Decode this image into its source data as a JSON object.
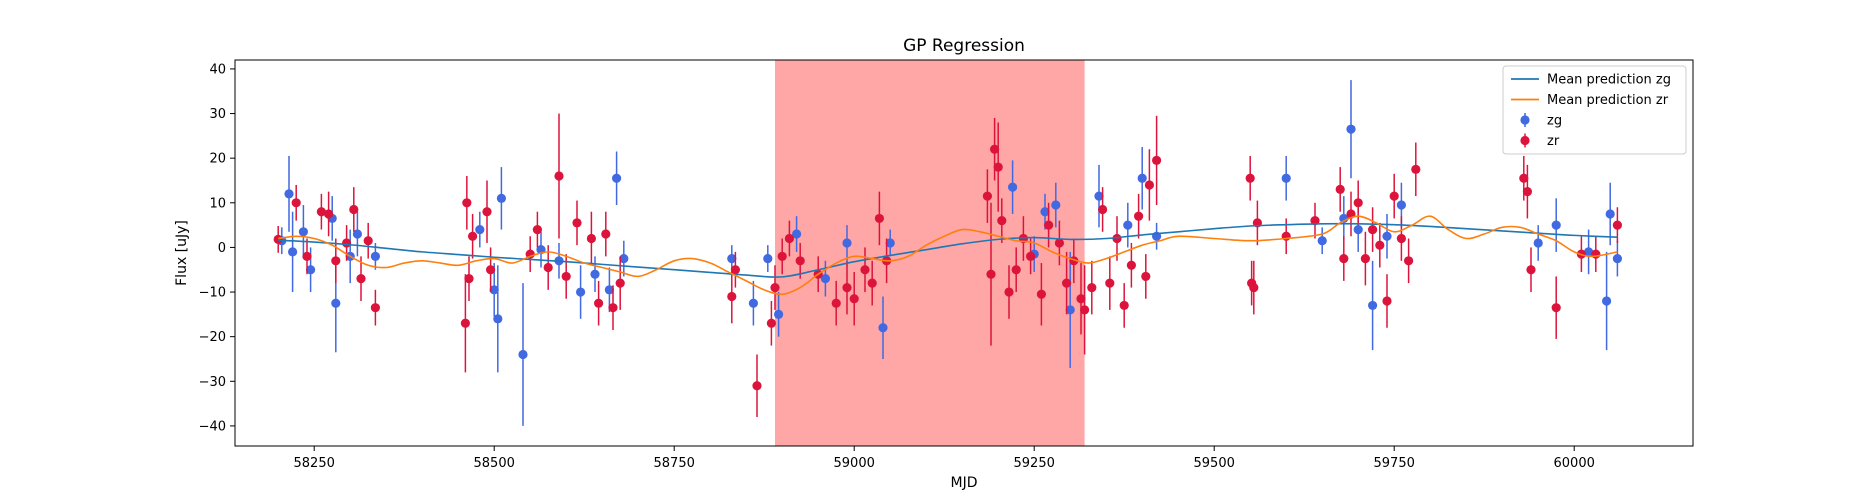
{
  "chart_data": {
    "type": "scatter",
    "title": "GP Regression",
    "xlabel": "MJD",
    "ylabel": "Flux [uJy]",
    "xlim": [
      58140,
      60165
    ],
    "ylim": [
      -44.5,
      42
    ],
    "xticks": [
      58250,
      58500,
      58750,
      59000,
      59250,
      59500,
      59750,
      60000
    ],
    "yticks": [
      -40,
      -30,
      -20,
      -10,
      0,
      10,
      20,
      30,
      40
    ],
    "legend_position": "top-right",
    "highlight_region": {
      "x_start": 58890,
      "x_end": 59320,
      "color": "#ff0000",
      "alpha": 0.35
    },
    "colors": {
      "zg_line": "#1f77b4",
      "zr_line": "#ff7f0e",
      "zg_points": "#4169e1",
      "zr_points": "#dc143c"
    },
    "series": [
      {
        "name": "Mean prediction zg",
        "kind": "line",
        "x": [
          58200,
          58250,
          58300,
          58350,
          58400,
          58450,
          58500,
          58550,
          58600,
          58650,
          58700,
          58750,
          58800,
          58850,
          58900,
          58950,
          59000,
          59050,
          59100,
          59150,
          59200,
          59250,
          59300,
          59350,
          59400,
          59450,
          59500,
          59550,
          59600,
          59650,
          59700,
          59750,
          59800,
          59850,
          59900,
          59950,
          60000,
          60060
        ],
        "y": [
          1.6,
          1.2,
          0.6,
          -0.2,
          -1.0,
          -1.6,
          -2.2,
          -2.7,
          -3.2,
          -3.8,
          -4.4,
          -5.0,
          -5.6,
          -6.2,
          -6.6,
          -5.0,
          -3.2,
          -1.8,
          -0.5,
          0.8,
          1.8,
          2.2,
          1.8,
          2.0,
          2.8,
          3.5,
          4.2,
          4.8,
          5.1,
          5.3,
          5.3,
          5.1,
          4.7,
          4.2,
          3.7,
          3.2,
          2.7,
          2.3
        ]
      },
      {
        "name": "Mean prediction zr",
        "kind": "line",
        "x": [
          58200,
          58225,
          58250,
          58275,
          58300,
          58325,
          58350,
          58375,
          58400,
          58425,
          58450,
          58475,
          58500,
          58525,
          58550,
          58575,
          58600,
          58625,
          58650,
          58675,
          58700,
          58725,
          58750,
          58775,
          58800,
          58825,
          58850,
          58875,
          58900,
          58925,
          58950,
          58975,
          59000,
          59025,
          59050,
          59075,
          59100,
          59125,
          59150,
          59175,
          59200,
          59225,
          59250,
          59275,
          59300,
          59325,
          59350,
          59375,
          59400,
          59425,
          59450,
          59500,
          59550,
          59600,
          59650,
          59675,
          59700,
          59725,
          59750,
          59775,
          59800,
          59825,
          59850,
          59875,
          59900,
          59925,
          59950,
          59975,
          60000,
          60025,
          60060
        ],
        "y": [
          2.0,
          2.5,
          2.0,
          0.5,
          -2.0,
          -4.0,
          -4.5,
          -3.5,
          -3.0,
          -3.5,
          -4.0,
          -3.0,
          -2.5,
          -3.5,
          -2.0,
          -1.0,
          -2.0,
          -3.5,
          -4.5,
          -5.5,
          -6.5,
          -5.0,
          -3.0,
          -2.5,
          -3.5,
          -5.5,
          -7.5,
          -9.5,
          -10.5,
          -9.0,
          -6.0,
          -3.5,
          -2.0,
          -2.5,
          -3.0,
          -2.0,
          0.5,
          2.5,
          4.0,
          3.5,
          2.5,
          1.5,
          1.0,
          -1.0,
          -2.5,
          -3.5,
          -2.5,
          -1.0,
          0.5,
          1.5,
          2.5,
          2.0,
          1.5,
          2.0,
          3.0,
          5.5,
          7.0,
          5.5,
          3.5,
          5.0,
          7.0,
          4.0,
          2.0,
          3.0,
          4.5,
          4.5,
          3.0,
          1.5,
          -1.0,
          -2.0,
          -1.0
        ]
      },
      {
        "name": "zg",
        "kind": "errorbar",
        "points": [
          {
            "x": 58205,
            "y": 1.5,
            "err": 3
          },
          {
            "x": 58215,
            "y": 12,
            "err": 8.5
          },
          {
            "x": 58220,
            "y": -1,
            "err": 9
          },
          {
            "x": 58235,
            "y": 3.5,
            "err": 6
          },
          {
            "x": 58245,
            "y": -5,
            "err": 5
          },
          {
            "x": 58275,
            "y": 6.5,
            "err": 5
          },
          {
            "x": 58280,
            "y": -12.5,
            "err": 11
          },
          {
            "x": 58300,
            "y": -2,
            "err": 6
          },
          {
            "x": 58310,
            "y": 3,
            "err": 5
          },
          {
            "x": 58335,
            "y": -2,
            "err": 3
          },
          {
            "x": 58480,
            "y": 4,
            "err": 4
          },
          {
            "x": 58500,
            "y": -9.5,
            "err": 6
          },
          {
            "x": 58505,
            "y": -16,
            "err": 12
          },
          {
            "x": 58510,
            "y": 11,
            "err": 7
          },
          {
            "x": 58540,
            "y": -24,
            "err": 16
          },
          {
            "x": 58565,
            "y": -0.5,
            "err": 4
          },
          {
            "x": 58590,
            "y": -3,
            "err": 4
          },
          {
            "x": 58620,
            "y": -10,
            "err": 6
          },
          {
            "x": 58640,
            "y": -6,
            "err": 4
          },
          {
            "x": 58660,
            "y": -9.5,
            "err": 5
          },
          {
            "x": 58670,
            "y": 15.5,
            "err": 6
          },
          {
            "x": 58680,
            "y": -2.5,
            "err": 4
          },
          {
            "x": 58830,
            "y": -2.5,
            "err": 3
          },
          {
            "x": 58860,
            "y": -12.5,
            "err": 5
          },
          {
            "x": 58880,
            "y": -2.5,
            "err": 3
          },
          {
            "x": 58895,
            "y": -15,
            "err": 5
          },
          {
            "x": 58920,
            "y": 3,
            "err": 4
          },
          {
            "x": 58960,
            "y": -7,
            "err": 4
          },
          {
            "x": 58990,
            "y": 1,
            "err": 4
          },
          {
            "x": 59040,
            "y": -18,
            "err": 7
          },
          {
            "x": 59050,
            "y": 1,
            "err": 3
          },
          {
            "x": 59220,
            "y": 13.5,
            "err": 6
          },
          {
            "x": 59250,
            "y": -1.5,
            "err": 4
          },
          {
            "x": 59265,
            "y": 8,
            "err": 4
          },
          {
            "x": 59280,
            "y": 9.5,
            "err": 5
          },
          {
            "x": 59300,
            "y": -14,
            "err": 13
          },
          {
            "x": 59340,
            "y": 11.5,
            "err": 7
          },
          {
            "x": 59380,
            "y": 5,
            "err": 5
          },
          {
            "x": 59400,
            "y": 15.5,
            "err": 7
          },
          {
            "x": 59420,
            "y": 2.5,
            "err": 3
          },
          {
            "x": 59600,
            "y": 15.5,
            "err": 5
          },
          {
            "x": 59650,
            "y": 1.5,
            "err": 3
          },
          {
            "x": 59680,
            "y": 6.5,
            "err": 5
          },
          {
            "x": 59690,
            "y": 26.5,
            "err": 11
          },
          {
            "x": 59700,
            "y": 4,
            "err": 5
          },
          {
            "x": 59720,
            "y": -13,
            "err": 10
          },
          {
            "x": 59740,
            "y": 2.5,
            "err": 5
          },
          {
            "x": 59760,
            "y": 9.5,
            "err": 5
          },
          {
            "x": 59950,
            "y": 1,
            "err": 4
          },
          {
            "x": 59975,
            "y": 5,
            "err": 6
          },
          {
            "x": 60020,
            "y": -1,
            "err": 5
          },
          {
            "x": 60045,
            "y": -12,
            "err": 11
          },
          {
            "x": 60050,
            "y": 7.5,
            "err": 7
          },
          {
            "x": 60060,
            "y": -2.5,
            "err": 4
          }
        ]
      },
      {
        "name": "zr",
        "kind": "errorbar",
        "points": [
          {
            "x": 58200,
            "y": 1.8,
            "err": 3
          },
          {
            "x": 58225,
            "y": 10,
            "err": 4
          },
          {
            "x": 58240,
            "y": -2,
            "err": 4
          },
          {
            "x": 58260,
            "y": 8,
            "err": 4
          },
          {
            "x": 58270,
            "y": 7.5,
            "err": 5
          },
          {
            "x": 58280,
            "y": -3,
            "err": 5
          },
          {
            "x": 58295,
            "y": 1,
            "err": 4
          },
          {
            "x": 58305,
            "y": 8.5,
            "err": 5
          },
          {
            "x": 58315,
            "y": -7,
            "err": 5
          },
          {
            "x": 58325,
            "y": 1.5,
            "err": 4
          },
          {
            "x": 58335,
            "y": -13.5,
            "err": 4
          },
          {
            "x": 58460,
            "y": -17,
            "err": 11
          },
          {
            "x": 58462,
            "y": 10,
            "err": 6
          },
          {
            "x": 58465,
            "y": -7,
            "err": 5
          },
          {
            "x": 58470,
            "y": 2.5,
            "err": 5
          },
          {
            "x": 58490,
            "y": 8,
            "err": 7
          },
          {
            "x": 58495,
            "y": -5,
            "err": 5
          },
          {
            "x": 58550,
            "y": -1.5,
            "err": 4
          },
          {
            "x": 58560,
            "y": 4,
            "err": 4
          },
          {
            "x": 58575,
            "y": -4.5,
            "err": 5
          },
          {
            "x": 58590,
            "y": 16,
            "err": 14
          },
          {
            "x": 58600,
            "y": -6.5,
            "err": 5
          },
          {
            "x": 58615,
            "y": 5.5,
            "err": 5
          },
          {
            "x": 58635,
            "y": 2,
            "err": 6
          },
          {
            "x": 58645,
            "y": -12.5,
            "err": 5
          },
          {
            "x": 58655,
            "y": 3,
            "err": 5
          },
          {
            "x": 58665,
            "y": -13.5,
            "err": 5
          },
          {
            "x": 58675,
            "y": -8,
            "err": 6
          },
          {
            "x": 58830,
            "y": -11,
            "err": 6
          },
          {
            "x": 58835,
            "y": -5,
            "err": 4
          },
          {
            "x": 58865,
            "y": -31,
            "err": 7
          },
          {
            "x": 58885,
            "y": -17,
            "err": 5
          },
          {
            "x": 58890,
            "y": -9,
            "err": 5
          },
          {
            "x": 58900,
            "y": -2,
            "err": 4
          },
          {
            "x": 58910,
            "y": 2,
            "err": 4
          },
          {
            "x": 58925,
            "y": -3,
            "err": 4
          },
          {
            "x": 58950,
            "y": -6,
            "err": 4
          },
          {
            "x": 58975,
            "y": -12.5,
            "err": 5
          },
          {
            "x": 58990,
            "y": -9,
            "err": 6
          },
          {
            "x": 59000,
            "y": -11.5,
            "err": 6
          },
          {
            "x": 59015,
            "y": -5,
            "err": 5
          },
          {
            "x": 59025,
            "y": -8,
            "err": 5
          },
          {
            "x": 59035,
            "y": 6.5,
            "err": 6
          },
          {
            "x": 59045,
            "y": -3,
            "err": 5
          },
          {
            "x": 59185,
            "y": 11.5,
            "err": 6
          },
          {
            "x": 59190,
            "y": -6,
            "err": 16
          },
          {
            "x": 59195,
            "y": 22,
            "err": 7
          },
          {
            "x": 59200,
            "y": 18,
            "err": 10
          },
          {
            "x": 59205,
            "y": 6,
            "err": 5
          },
          {
            "x": 59215,
            "y": -10,
            "err": 6
          },
          {
            "x": 59225,
            "y": -5,
            "err": 5
          },
          {
            "x": 59235,
            "y": 2,
            "err": 5
          },
          {
            "x": 59245,
            "y": -2,
            "err": 4
          },
          {
            "x": 59260,
            "y": -10.5,
            "err": 7
          },
          {
            "x": 59270,
            "y": 5,
            "err": 5
          },
          {
            "x": 59285,
            "y": 1,
            "err": 5
          },
          {
            "x": 59295,
            "y": -8,
            "err": 7
          },
          {
            "x": 59305,
            "y": -3,
            "err": 5
          },
          {
            "x": 59315,
            "y": -11.5,
            "err": 8
          },
          {
            "x": 59320,
            "y": -14,
            "err": 10
          },
          {
            "x": 59330,
            "y": -9,
            "err": 6
          },
          {
            "x": 59345,
            "y": 8.5,
            "err": 5
          },
          {
            "x": 59355,
            "y": -8,
            "err": 6
          },
          {
            "x": 59365,
            "y": 2,
            "err": 5
          },
          {
            "x": 59375,
            "y": -13,
            "err": 5
          },
          {
            "x": 59385,
            "y": -4,
            "err": 5
          },
          {
            "x": 59395,
            "y": 7,
            "err": 5
          },
          {
            "x": 59405,
            "y": -6.5,
            "err": 5
          },
          {
            "x": 59410,
            "y": 14,
            "err": 8
          },
          {
            "x": 59420,
            "y": 19.5,
            "err": 10
          },
          {
            "x": 59550,
            "y": 15.5,
            "err": 5
          },
          {
            "x": 59552,
            "y": -8,
            "err": 5
          },
          {
            "x": 59555,
            "y": -9,
            "err": 6
          },
          {
            "x": 59560,
            "y": 5.5,
            "err": 5
          },
          {
            "x": 59600,
            "y": 2.5,
            "err": 4
          },
          {
            "x": 59640,
            "y": 6,
            "err": 4
          },
          {
            "x": 59675,
            "y": 13,
            "err": 5
          },
          {
            "x": 59680,
            "y": -2.5,
            "err": 5
          },
          {
            "x": 59690,
            "y": 7.5,
            "err": 5
          },
          {
            "x": 59700,
            "y": 10,
            "err": 5
          },
          {
            "x": 59710,
            "y": -2.5,
            "err": 6
          },
          {
            "x": 59720,
            "y": 4,
            "err": 5
          },
          {
            "x": 59730,
            "y": 0.5,
            "err": 5
          },
          {
            "x": 59740,
            "y": -12,
            "err": 6
          },
          {
            "x": 59750,
            "y": 11.5,
            "err": 5
          },
          {
            "x": 59760,
            "y": 2,
            "err": 5
          },
          {
            "x": 59770,
            "y": -3,
            "err": 5
          },
          {
            "x": 59780,
            "y": 17.5,
            "err": 6
          },
          {
            "x": 59930,
            "y": 15.5,
            "err": 5
          },
          {
            "x": 59935,
            "y": 12.5,
            "err": 6
          },
          {
            "x": 59940,
            "y": -5,
            "err": 5
          },
          {
            "x": 59975,
            "y": -13.5,
            "err": 7
          },
          {
            "x": 60010,
            "y": -1.5,
            "err": 4
          },
          {
            "x": 60030,
            "y": -1.5,
            "err": 4
          },
          {
            "x": 60060,
            "y": 5,
            "err": 4
          }
        ]
      }
    ]
  }
}
